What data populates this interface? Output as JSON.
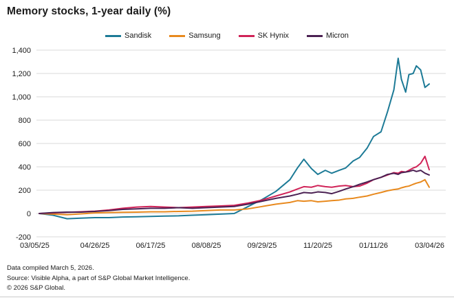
{
  "title": "Memory stocks, 1-year daily (%)",
  "footer": {
    "line1": "Data compiled March 5, 2026.",
    "line2": "Source: Visible Alpha, a part of S&P Global Market Intelligence.",
    "line3": "© 2026 S&P Global."
  },
  "colors": {
    "grid": "#d9d9d9",
    "text": "#1a1a1a"
  },
  "chart_data": {
    "type": "line",
    "title": "Memory stocks, 1-year daily (%)",
    "xlabel": "",
    "ylabel": "",
    "grid": true,
    "legend_position": "top",
    "ylim": [
      -200,
      1400
    ],
    "y_ticks": [
      -200,
      0,
      200,
      400,
      600,
      800,
      1000,
      1200,
      1400
    ],
    "y_tick_labels": [
      "-200",
      "0",
      "200",
      "400",
      "600",
      "800",
      "1,000",
      "1,200",
      "1,400"
    ],
    "x_tick_days": [
      0,
      52,
      104,
      156,
      208,
      260,
      312,
      364
    ],
    "x_tick_labels": [
      "03/05/25",
      "04/26/25",
      "06/17/25",
      "08/08/25",
      "09/29/25",
      "11/20/25",
      "01/11/26",
      "03/04/26"
    ],
    "x_range_days": [
      0,
      364
    ],
    "x_days": [
      0,
      13,
      26,
      39,
      52,
      65,
      78,
      91,
      104,
      117,
      130,
      143,
      156,
      169,
      182,
      195,
      208,
      221,
      234,
      241,
      247,
      254,
      260,
      267,
      273,
      280,
      286,
      293,
      299,
      306,
      312,
      319,
      325,
      331,
      335,
      338,
      342,
      345,
      349,
      352,
      356,
      360,
      364
    ],
    "series": [
      {
        "name": "Sandisk",
        "color": "#1c7a96",
        "values": [
          0,
          -15,
          -45,
          -40,
          -35,
          -35,
          -30,
          -28,
          -25,
          -22,
          -20,
          -15,
          -10,
          -5,
          0,
          60,
          120,
          190,
          290,
          390,
          465,
          385,
          335,
          370,
          345,
          370,
          390,
          450,
          480,
          560,
          660,
          700,
          870,
          1060,
          1330,
          1150,
          1040,
          1190,
          1200,
          1265,
          1230,
          1080,
          1110
        ]
      },
      {
        "name": "Samsung",
        "color": "#e8891d",
        "values": [
          0,
          -5,
          -10,
          -3,
          5,
          8,
          10,
          12,
          15,
          15,
          18,
          20,
          25,
          30,
          30,
          40,
          60,
          80,
          95,
          110,
          105,
          110,
          100,
          105,
          110,
          115,
          125,
          130,
          140,
          150,
          165,
          180,
          195,
          205,
          210,
          220,
          230,
          235,
          250,
          260,
          270,
          290,
          225
        ]
      },
      {
        "name": "SK Hynix",
        "color": "#d02257",
        "values": [
          0,
          5,
          10,
          15,
          20,
          30,
          45,
          55,
          60,
          55,
          50,
          55,
          60,
          65,
          70,
          90,
          115,
          150,
          185,
          210,
          230,
          225,
          240,
          230,
          225,
          235,
          240,
          230,
          235,
          260,
          290,
          310,
          330,
          350,
          345,
          360,
          355,
          370,
          390,
          400,
          430,
          490,
          375
        ]
      },
      {
        "name": "Micron",
        "color": "#4a2052",
        "values": [
          0,
          8,
          12,
          12,
          18,
          25,
          35,
          40,
          45,
          45,
          50,
          45,
          50,
          55,
          60,
          80,
          105,
          130,
          150,
          165,
          180,
          175,
          185,
          180,
          170,
          190,
          210,
          230,
          250,
          270,
          290,
          310,
          335,
          345,
          335,
          350,
          355,
          360,
          371,
          360,
          370,
          345,
          330
        ]
      }
    ]
  }
}
